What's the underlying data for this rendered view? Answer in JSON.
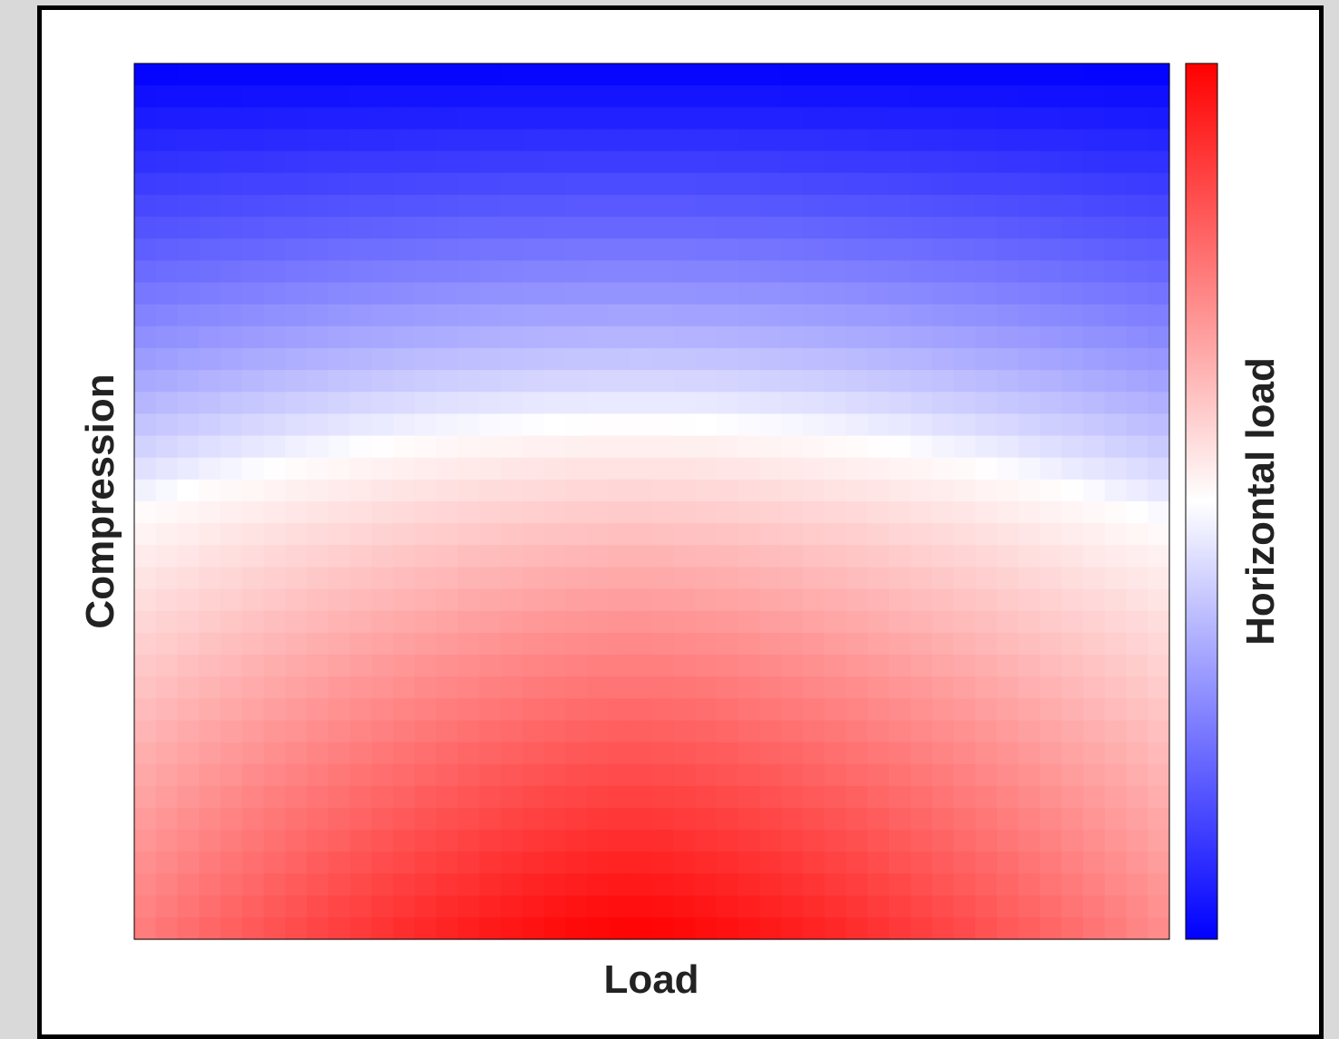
{
  "chart_data": {
    "type": "heatmap",
    "title": "",
    "xlabel": "Load",
    "ylabel": "Compression",
    "colorbar_label": "Horizontal load",
    "colormap": {
      "low": "#0000ff",
      "mid": "#ffffff",
      "high": "#ff0000"
    },
    "value_range": [
      -1,
      1
    ],
    "grid": false,
    "legend": "colorbar-right",
    "x_cells": 48,
    "y_cells": 40,
    "field": {
      "description_note": "",
      "peak_x_fraction": 0.48,
      "max_value": 1.0,
      "min_value": -1.0
    }
  },
  "colors": {
    "background": "#d9d9d9",
    "panel": "#ffffff",
    "border": "#000000",
    "text": "#222222"
  }
}
